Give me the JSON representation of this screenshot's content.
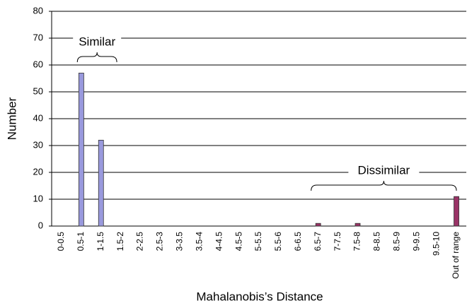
{
  "chart_data": {
    "type": "bar",
    "x_label": "Mahalanobis’s Distance",
    "y_label": "Number",
    "categories": [
      "0-0.5",
      "0.5-1",
      "1-1.5",
      "1.5-2",
      "2-2.5",
      "2.5-3",
      "3-3.5",
      "3.5-4",
      "4-4.5",
      "4.5-5",
      "5-5.5",
      "5.5-6",
      "6-6.5",
      "6.5-7",
      "7-7.5",
      "7.5-8",
      "8-8.5",
      "8.5-9",
      "9-9.5",
      "9.5-10",
      "Out of range"
    ],
    "values": [
      0,
      57,
      32,
      0,
      0,
      0,
      0,
      0,
      0,
      0,
      0,
      0,
      0,
      1,
      0,
      1,
      0,
      0,
      0,
      0,
      11
    ],
    "colors": [
      "#9999dd",
      "#9999dd",
      "#9999dd",
      "#9999dd",
      "#9999dd",
      "#9999dd",
      "#9999dd",
      "#9999dd",
      "#9999dd",
      "#9999dd",
      "#9999dd",
      "#9999dd",
      "#9999dd",
      "#993366",
      "#993366",
      "#993366",
      "#993366",
      "#993366",
      "#993366",
      "#993366",
      "#993366"
    ],
    "ylim": [
      0,
      80
    ],
    "yticks": [
      0,
      10,
      20,
      30,
      40,
      50,
      60,
      70,
      80
    ],
    "grid": true,
    "annotations": [
      "Similar",
      "Dissimilar"
    ]
  }
}
